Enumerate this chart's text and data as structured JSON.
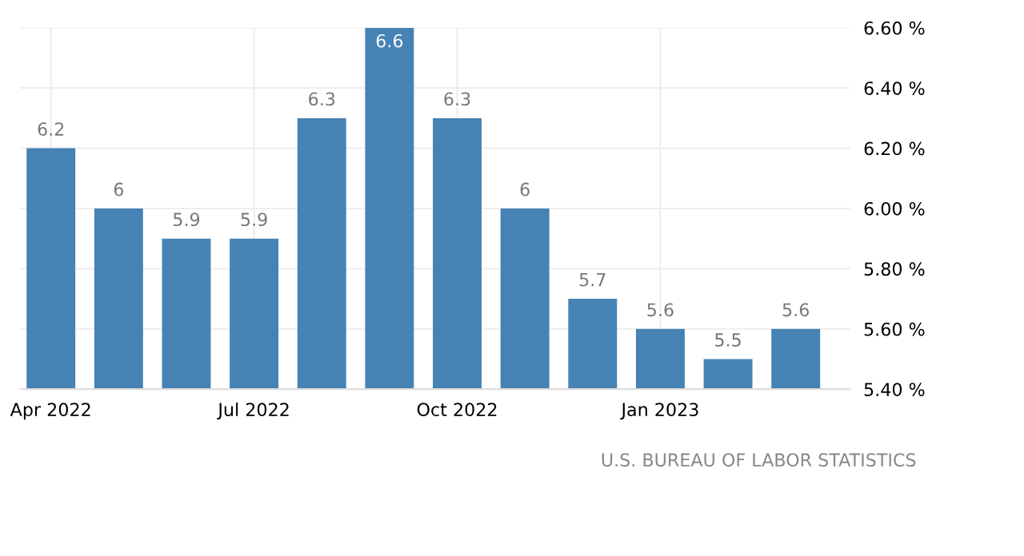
{
  "chart_data": {
    "type": "bar",
    "categories": [
      "Apr 2022",
      null,
      null,
      "Jul 2022",
      null,
      null,
      "Oct 2022",
      null,
      null,
      "Jan 2023",
      null,
      null
    ],
    "values": [
      6.2,
      6,
      5.9,
      5.9,
      6.3,
      6.6,
      6.3,
      6,
      5.7,
      5.6,
      5.5,
      5.6
    ],
    "color": "#4682b4",
    "ylim": [
      5.4,
      6.6
    ],
    "yticks": [
      {
        "value": 5.4,
        "label": "5.40 %"
      },
      {
        "value": 5.6,
        "label": "5.60 %"
      },
      {
        "value": 5.8,
        "label": "5.80 %"
      },
      {
        "value": 6.0,
        "label": "6.00 %"
      },
      {
        "value": 6.2,
        "label": "6.20 %"
      },
      {
        "value": 6.4,
        "label": "6.40 %"
      },
      {
        "value": 6.6,
        "label": "6.60 %"
      }
    ],
    "grid": true,
    "data_labels": true,
    "annotations": [
      "U.S. BUREAU OF LABOR STATISTICS"
    ]
  }
}
